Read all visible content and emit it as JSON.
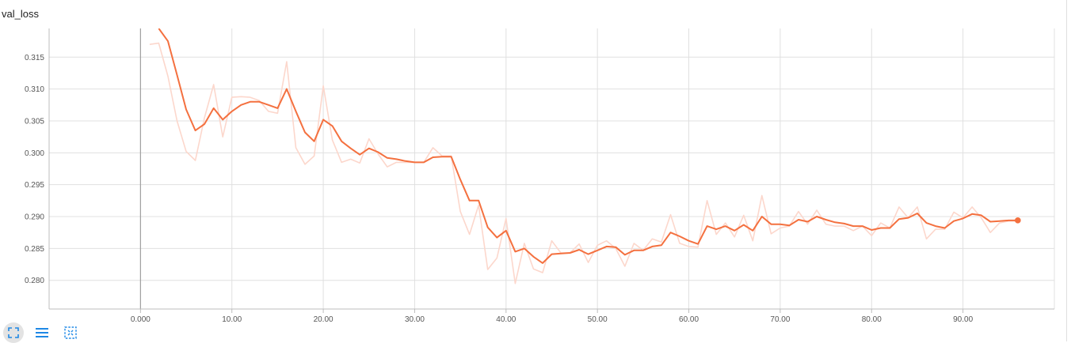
{
  "chart_data": {
    "type": "line",
    "title": "val_loss",
    "xlabel": "",
    "ylabel": "",
    "xlim": [
      -10,
      100
    ],
    "ylim": [
      0.2755,
      0.3195
    ],
    "x_ticks": [
      "0.000",
      "10.00",
      "20.00",
      "30.00",
      "40.00",
      "50.00",
      "60.00",
      "70.00",
      "80.00",
      "90.00"
    ],
    "y_ticks": [
      "0.280",
      "0.285",
      "0.290",
      "0.295",
      "0.300",
      "0.305",
      "0.310",
      "0.315"
    ],
    "grid": true,
    "series": [
      {
        "role": "raw",
        "color": "#fcd7cc",
        "x": [
          1,
          2,
          3,
          4,
          5,
          6,
          7,
          8,
          9,
          10,
          11,
          12,
          13,
          14,
          15,
          16,
          17,
          18,
          19,
          20,
          21,
          22,
          23,
          24,
          25,
          26,
          27,
          28,
          29,
          30,
          31,
          32,
          33,
          34,
          35,
          36,
          37,
          38,
          39,
          40,
          41,
          42,
          43,
          44,
          45,
          46,
          47,
          48,
          49,
          50,
          51,
          52,
          53,
          54,
          55,
          56,
          57,
          58,
          59,
          60,
          61,
          62,
          63,
          64,
          65,
          66,
          67,
          68,
          69,
          70,
          71,
          72,
          73,
          74,
          75,
          76,
          77,
          78,
          79,
          80,
          81,
          82,
          83,
          84,
          85,
          86,
          87,
          88,
          89,
          90,
          91,
          92,
          93,
          94,
          95,
          96
        ],
        "y": [
          0.317,
          0.3172,
          0.312,
          0.305,
          0.3002,
          0.2988,
          0.3055,
          0.3107,
          0.3025,
          0.3087,
          0.3088,
          0.3087,
          0.3082,
          0.3065,
          0.3062,
          0.3143,
          0.3008,
          0.2982,
          0.2995,
          0.3105,
          0.302,
          0.2985,
          0.299,
          0.2984,
          0.3022,
          0.2998,
          0.2978,
          0.2985,
          0.2985,
          0.2985,
          0.2985,
          0.3008,
          0.2995,
          0.2995,
          0.2908,
          0.2872,
          0.2918,
          0.2817,
          0.2835,
          0.2897,
          0.2795,
          0.2858,
          0.2818,
          0.2812,
          0.2862,
          0.2843,
          0.2843,
          0.2857,
          0.2828,
          0.2855,
          0.2862,
          0.285,
          0.2822,
          0.2858,
          0.2847,
          0.2865,
          0.286,
          0.2903,
          0.2858,
          0.2853,
          0.2852,
          0.2925,
          0.2872,
          0.289,
          0.2868,
          0.2902,
          0.2862,
          0.2933,
          0.2873,
          0.2882,
          0.2885,
          0.2908,
          0.2888,
          0.291,
          0.2888,
          0.2885,
          0.2885,
          0.2878,
          0.2885,
          0.287,
          0.289,
          0.2882,
          0.2915,
          0.2898,
          0.2915,
          0.2865,
          0.288,
          0.288,
          0.2907,
          0.2898,
          0.2915,
          0.2898,
          0.2875,
          0.289,
          0.2893,
          0.2893
        ]
      },
      {
        "role": "smoothed",
        "color": "#f4703f",
        "x": [
          2,
          3,
          4,
          5,
          6,
          7,
          8,
          9,
          10,
          11,
          12,
          13,
          14,
          15,
          16,
          17,
          18,
          19,
          20,
          21,
          22,
          23,
          24,
          25,
          26,
          27,
          28,
          29,
          30,
          31,
          32,
          33,
          34,
          35,
          36,
          37,
          38,
          39,
          40,
          41,
          42,
          43,
          44,
          45,
          46,
          47,
          48,
          49,
          50,
          51,
          52,
          53,
          54,
          55,
          56,
          57,
          58,
          59,
          60,
          61,
          62,
          63,
          64,
          65,
          66,
          67,
          68,
          69,
          70,
          71,
          72,
          73,
          74,
          75,
          76,
          77,
          78,
          79,
          80,
          81,
          82,
          83,
          84,
          85,
          86,
          87,
          88,
          89,
          90,
          91,
          92,
          93,
          94,
          95,
          96
        ],
        "y": [
          0.3195,
          0.3175,
          0.3122,
          0.3068,
          0.3035,
          0.3045,
          0.307,
          0.3052,
          0.3065,
          0.3075,
          0.308,
          0.308,
          0.3075,
          0.307,
          0.31,
          0.3065,
          0.3032,
          0.3018,
          0.3052,
          0.3042,
          0.3018,
          0.3007,
          0.2997,
          0.3007,
          0.3001,
          0.2992,
          0.299,
          0.2987,
          0.2985,
          0.2985,
          0.2993,
          0.2994,
          0.2994,
          0.2958,
          0.2925,
          0.2925,
          0.2883,
          0.2867,
          0.2878,
          0.2845,
          0.285,
          0.2837,
          0.2827,
          0.2841,
          0.2842,
          0.2843,
          0.2848,
          0.2841,
          0.2847,
          0.2853,
          0.2852,
          0.284,
          0.2847,
          0.2847,
          0.2853,
          0.2855,
          0.2875,
          0.2869,
          0.2862,
          0.2857,
          0.2885,
          0.288,
          0.2885,
          0.2878,
          0.2887,
          0.2878,
          0.29,
          0.2888,
          0.2888,
          0.2886,
          0.2895,
          0.2892,
          0.29,
          0.2895,
          0.2891,
          0.2889,
          0.2885,
          0.2885,
          0.2879,
          0.2882,
          0.2882,
          0.2896,
          0.2898,
          0.2905,
          0.289,
          0.2885,
          0.2882,
          0.2893,
          0.2897,
          0.2904,
          0.2902,
          0.2892,
          0.2893,
          0.2894,
          0.2894
        ]
      }
    ]
  },
  "toolbar": {
    "buttons": [
      {
        "icon": "fullscreen-icon",
        "active": true
      },
      {
        "icon": "menu-icon",
        "active": false
      },
      {
        "icon": "fit-domain-icon",
        "active": false
      }
    ],
    "accent_color": "#1e88e5"
  }
}
